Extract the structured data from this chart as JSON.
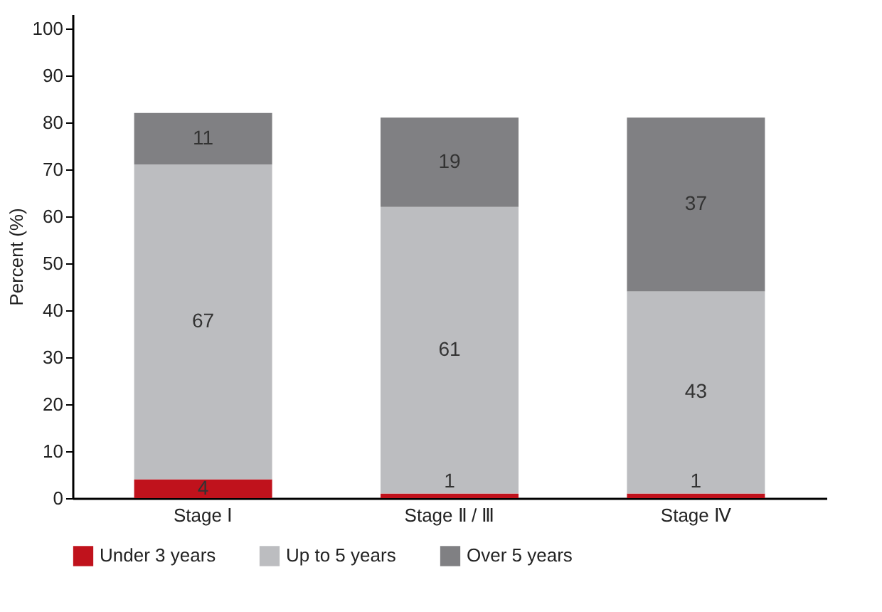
{
  "chart_data": {
    "type": "bar",
    "stacked": true,
    "ylabel": "Percent (%)",
    "categories": [
      "Stage Ⅰ",
      "Stage Ⅱ / Ⅲ",
      "Stage Ⅳ"
    ],
    "series": [
      {
        "name": "Under 3 years",
        "color": "#c0121c",
        "values": [
          4,
          1,
          1
        ]
      },
      {
        "name": "Up to 5 years",
        "color": "#bcbdc0",
        "values": [
          67,
          61,
          43
        ]
      },
      {
        "name": "Over 5 years",
        "color": "#808083",
        "values": [
          11,
          19,
          37
        ]
      }
    ],
    "ylim": [
      0,
      103
    ],
    "yticks": [
      0,
      10,
      20,
      30,
      40,
      50,
      60,
      70,
      80,
      90,
      100
    ],
    "data_labels": true,
    "grid": false,
    "legend": "bottom"
  }
}
